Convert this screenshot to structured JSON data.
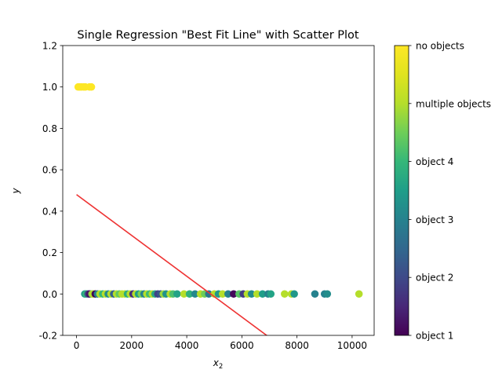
{
  "chart_data": {
    "type": "scatter",
    "title": "Single Regression \"Best Fit Line\" with Scatter Plot",
    "xlabel": "x",
    "xlabel_sub": "2",
    "ylabel": "y",
    "xlim": [
      -500,
      10800
    ],
    "ylim": [
      -0.2,
      1.2
    ],
    "xticks": [
      0,
      2000,
      4000,
      6000,
      8000,
      10000
    ],
    "yticks": [
      -0.2,
      0.0,
      0.2,
      0.4,
      0.6,
      0.8,
      1.0,
      1.2
    ],
    "grid": false,
    "colormap": "viridis",
    "colorbar": {
      "range": [
        0,
        5
      ],
      "ticks": [
        {
          "value": 0,
          "label": "object 1"
        },
        {
          "value": 1,
          "label": "object 2"
        },
        {
          "value": 2,
          "label": "object 3"
        },
        {
          "value": 3,
          "label": "object 4"
        },
        {
          "value": 4,
          "label": "multiple objects"
        },
        {
          "value": 5,
          "label": "no objects"
        }
      ]
    },
    "regression_line": {
      "x": [
        0,
        7000
      ],
      "y": [
        0.48,
        -0.21
      ],
      "color": "#ee3333"
    },
    "points": [
      {
        "x": 60,
        "y": 1.0,
        "c": 5
      },
      {
        "x": 120,
        "y": 1.0,
        "c": 5
      },
      {
        "x": 180,
        "y": 1.0,
        "c": 5
      },
      {
        "x": 260,
        "y": 1.0,
        "c": 5
      },
      {
        "x": 320,
        "y": 1.0,
        "c": 5
      },
      {
        "x": 470,
        "y": 1.0,
        "c": 5
      },
      {
        "x": 540,
        "y": 1.0,
        "c": 5
      },
      {
        "x": 300,
        "y": 0.0,
        "c": 2.4
      },
      {
        "x": 350,
        "y": 0.0,
        "c": 2.9
      },
      {
        "x": 420,
        "y": 0.0,
        "c": 1.0
      },
      {
        "x": 480,
        "y": 0.0,
        "c": 0.2
      },
      {
        "x": 560,
        "y": 0.0,
        "c": 3.7
      },
      {
        "x": 600,
        "y": 0.0,
        "c": 4.0
      },
      {
        "x": 680,
        "y": 0.0,
        "c": 0.0
      },
      {
        "x": 760,
        "y": 0.0,
        "c": 2.0
      },
      {
        "x": 850,
        "y": 0.0,
        "c": 4.0
      },
      {
        "x": 950,
        "y": 0.0,
        "c": 3.0
      },
      {
        "x": 1050,
        "y": 0.0,
        "c": 4.0
      },
      {
        "x": 1150,
        "y": 0.0,
        "c": 2.2
      },
      {
        "x": 1250,
        "y": 0.0,
        "c": 4.0
      },
      {
        "x": 1350,
        "y": 0.0,
        "c": 1.4
      },
      {
        "x": 1450,
        "y": 0.0,
        "c": 4.0
      },
      {
        "x": 1550,
        "y": 0.0,
        "c": 3.4
      },
      {
        "x": 1650,
        "y": 0.0,
        "c": 4.0
      },
      {
        "x": 1750,
        "y": 0.0,
        "c": 4.0
      },
      {
        "x": 1850,
        "y": 0.0,
        "c": 2.8
      },
      {
        "x": 1950,
        "y": 0.0,
        "c": 4.0
      },
      {
        "x": 2050,
        "y": 0.0,
        "c": 0.6
      },
      {
        "x": 2150,
        "y": 0.0,
        "c": 4.0
      },
      {
        "x": 2250,
        "y": 0.0,
        "c": 2.5
      },
      {
        "x": 2350,
        "y": 0.0,
        "c": 3.6
      },
      {
        "x": 2450,
        "y": 0.0,
        "c": 2.0
      },
      {
        "x": 2550,
        "y": 0.0,
        "c": 4.0
      },
      {
        "x": 2650,
        "y": 0.0,
        "c": 3.1
      },
      {
        "x": 2750,
        "y": 0.0,
        "c": 4.0
      },
      {
        "x": 2850,
        "y": 0.0,
        "c": 2.7
      },
      {
        "x": 2950,
        "y": 0.0,
        "c": 0.9
      },
      {
        "x": 3050,
        "y": 0.0,
        "c": 1.2
      },
      {
        "x": 3150,
        "y": 0.0,
        "c": 3.8
      },
      {
        "x": 3250,
        "y": 0.0,
        "c": 2.3
      },
      {
        "x": 3400,
        "y": 0.0,
        "c": 4.0
      },
      {
        "x": 3500,
        "y": 0.0,
        "c": 3.2
      },
      {
        "x": 3650,
        "y": 0.0,
        "c": 2.6
      },
      {
        "x": 3900,
        "y": 0.0,
        "c": 4.0
      },
      {
        "x": 4100,
        "y": 0.0,
        "c": 2.9
      },
      {
        "x": 4300,
        "y": 0.0,
        "c": 2.1
      },
      {
        "x": 4500,
        "y": 0.0,
        "c": 4.0
      },
      {
        "x": 4650,
        "y": 0.0,
        "c": 3.5
      },
      {
        "x": 4800,
        "y": 0.0,
        "c": 1.8
      },
      {
        "x": 5000,
        "y": 0.0,
        "c": 4.0
      },
      {
        "x": 5150,
        "y": 0.0,
        "c": 2.4
      },
      {
        "x": 5300,
        "y": 0.0,
        "c": 4.0
      },
      {
        "x": 5500,
        "y": 0.0,
        "c": 2.0
      },
      {
        "x": 5700,
        "y": 0.0,
        "c": 0.1
      },
      {
        "x": 5900,
        "y": 0.0,
        "c": 3.3
      },
      {
        "x": 6050,
        "y": 0.0,
        "c": 0.8
      },
      {
        "x": 6200,
        "y": 0.0,
        "c": 4.0
      },
      {
        "x": 6350,
        "y": 0.0,
        "c": 2.2
      },
      {
        "x": 6550,
        "y": 0.0,
        "c": 4.0
      },
      {
        "x": 6750,
        "y": 0.0,
        "c": 2.5
      },
      {
        "x": 6950,
        "y": 0.0,
        "c": 2.0
      },
      {
        "x": 7050,
        "y": 0.0,
        "c": 2.6
      },
      {
        "x": 7550,
        "y": 0.0,
        "c": 4.0
      },
      {
        "x": 7800,
        "y": 0.0,
        "c": 4.0
      },
      {
        "x": 7900,
        "y": 0.0,
        "c": 2.4
      },
      {
        "x": 8650,
        "y": 0.0,
        "c": 2.0
      },
      {
        "x": 9000,
        "y": 0.0,
        "c": 2.0
      },
      {
        "x": 9100,
        "y": 0.0,
        "c": 2.2
      },
      {
        "x": 10250,
        "y": 0.0,
        "c": 4.0
      }
    ]
  }
}
